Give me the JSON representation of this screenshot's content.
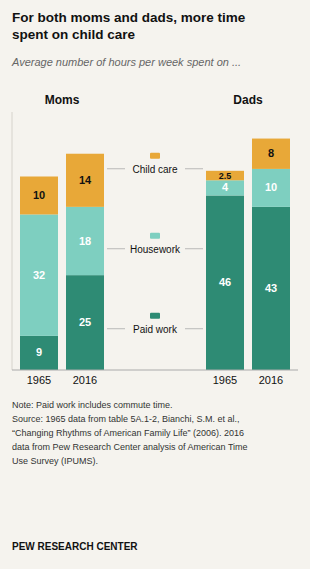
{
  "chart_data": {
    "type": "bar",
    "stacked": true,
    "title": "For both moms and dads, more time\nspent on child care",
    "subtitle": "Average number of hours per week spent on ...",
    "groups": [
      "Moms",
      "Dads"
    ],
    "categories": [
      "1965",
      "2016",
      "1965",
      "2016"
    ],
    "series": [
      {
        "name": "Paid work",
        "color": "#2E8B74",
        "values": [
          9,
          25,
          46,
          43
        ]
      },
      {
        "name": "Housework",
        "color": "#7ECFC0",
        "values": [
          32,
          18,
          4,
          10
        ]
      },
      {
        "name": "Child care",
        "color": "#E8A838",
        "values": [
          10,
          14,
          2.5,
          8
        ]
      }
    ],
    "ylim": [
      0,
      68
    ],
    "tick_labels": "x",
    "grid": false,
    "data_labels": true,
    "notes": [
      "Note: Paid work includes commute time.",
      "Source: 1965 data from table 5A.1-2, Bianchi, S.M. et al.,",
      "“Changing Rhythms of American Family Life” (2006). 2016",
      "data from Pew Research Center analysis of American Time",
      "Use Survey (IPUMS)."
    ],
    "footer": "PEW RESEARCH CENTER"
  }
}
